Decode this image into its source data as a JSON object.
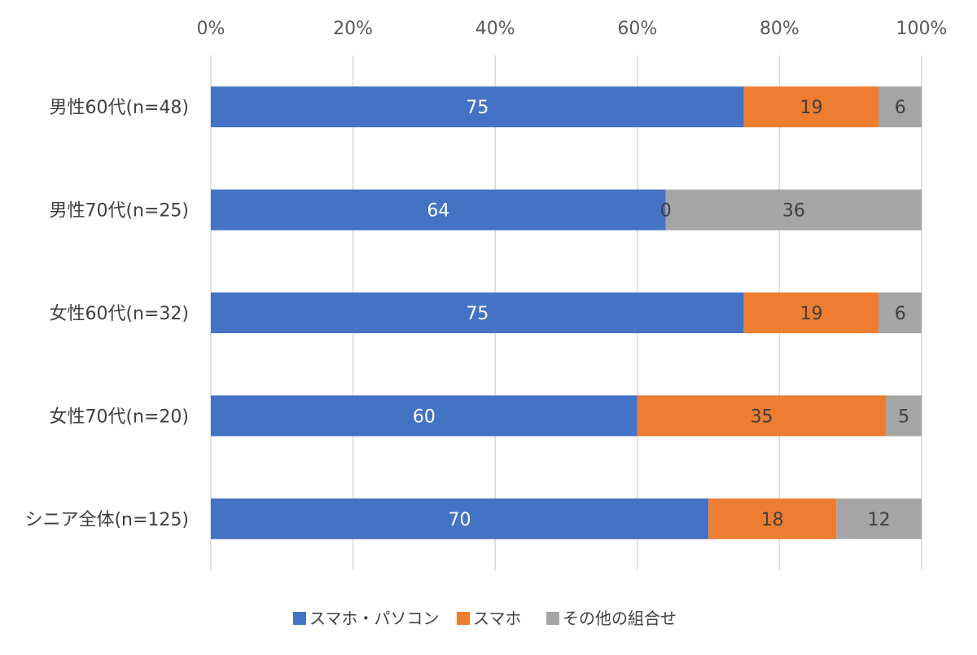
{
  "chart_data": {
    "type": "bar",
    "orientation": "horizontal",
    "stacked": true,
    "percent_axis": true,
    "xlim": [
      0,
      100
    ],
    "x_ticks": [
      "0%",
      "20%",
      "40%",
      "60%",
      "80%",
      "100%"
    ],
    "grid": true,
    "legend_position": "bottom",
    "categories": [
      "男性60代(n=48)",
      "男性70代(n=25)",
      "女性60代(n=32)",
      "女性70代(n=20)",
      "シニア全体(n=125)"
    ],
    "series": [
      {
        "name": "スマホ・パソコン",
        "color": "#4472C4",
        "label_color": "#ffffff",
        "values": [
          75,
          64,
          75,
          60,
          70
        ]
      },
      {
        "name": "スマホ",
        "color": "#ED7D31",
        "label_color": "#404040",
        "values": [
          19,
          0,
          19,
          35,
          18
        ]
      },
      {
        "name": "その他の組合せ",
        "color": "#A5A5A5",
        "label_color": "#404040",
        "values": [
          6,
          36,
          6,
          5,
          12
        ]
      }
    ]
  }
}
